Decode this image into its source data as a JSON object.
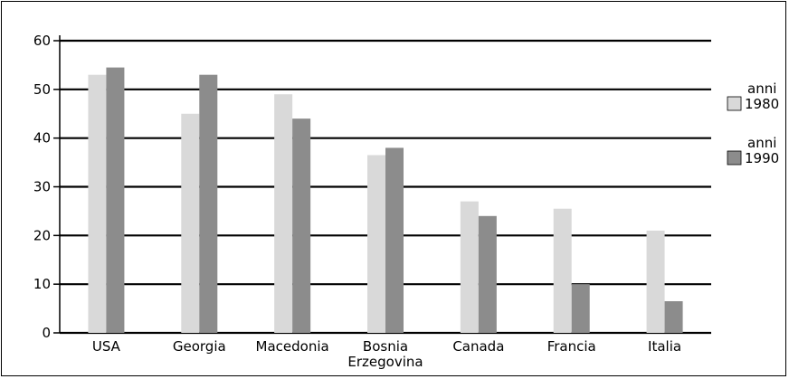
{
  "chart_data": {
    "type": "bar",
    "categories": [
      [
        "USA"
      ],
      [
        "Georgia"
      ],
      [
        "Macedonia"
      ],
      [
        "Bosnia",
        "Erzegovina"
      ],
      [
        "Canada"
      ],
      [
        "Francia"
      ],
      [
        "Italia"
      ]
    ],
    "series": [
      {
        "name": [
          "anni",
          "1980"
        ],
        "color": "#d9d9d9",
        "values": [
          53,
          45,
          49,
          36.5,
          27,
          25.5,
          21
        ]
      },
      {
        "name": [
          "anni",
          "1990"
        ],
        "color": "#8c8c8c",
        "values": [
          54.5,
          53,
          44,
          38,
          24,
          10,
          6.5
        ]
      }
    ],
    "ylim": [
      0,
      60
    ],
    "yticks": [
      0,
      10,
      20,
      30,
      40,
      50,
      60
    ],
    "grid": true,
    "legend_position": "right",
    "title": "",
    "xlabel": "",
    "ylabel": ""
  }
}
